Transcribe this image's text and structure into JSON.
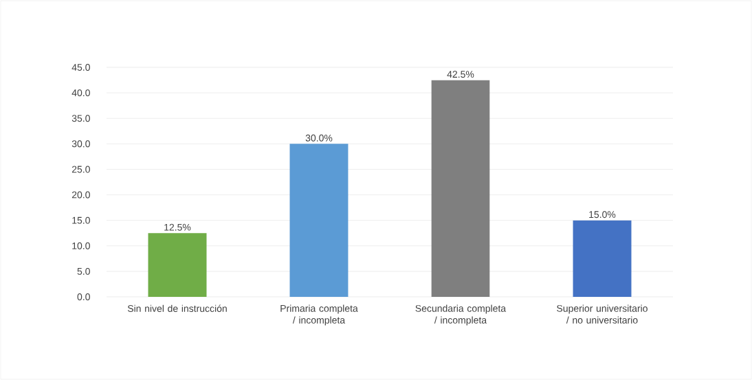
{
  "chart_data": {
    "type": "bar",
    "categories": [
      "Sin nivel de instrucción",
      "Primaria completa / incompleta",
      "Secundaria completa / incompleta",
      "Superior universitario / no universitario"
    ],
    "values": [
      12.5,
      30.0,
      42.5,
      15.0
    ],
    "colors": [
      "#70ad47",
      "#5b9bd5",
      "#7f7f7f",
      "#4472c4"
    ],
    "value_labels": [
      "12.5%",
      "30.0%",
      "42.5%",
      "15.0%"
    ],
    "ylim": [
      0,
      45
    ],
    "yticks": [
      {
        "value": 0,
        "label": "0.0"
      },
      {
        "value": 5,
        "label": "5.0"
      },
      {
        "value": 10,
        "label": "10.0"
      },
      {
        "value": 15,
        "label": "15.0"
      },
      {
        "value": 20,
        "label": "20.0"
      },
      {
        "value": 25,
        "label": "25.0"
      },
      {
        "value": 30,
        "label": "30.0"
      },
      {
        "value": 35,
        "label": "35.0"
      },
      {
        "value": 40,
        "label": "40.0"
      },
      {
        "value": 45,
        "label": "45.0"
      }
    ],
    "grid": "y"
  }
}
